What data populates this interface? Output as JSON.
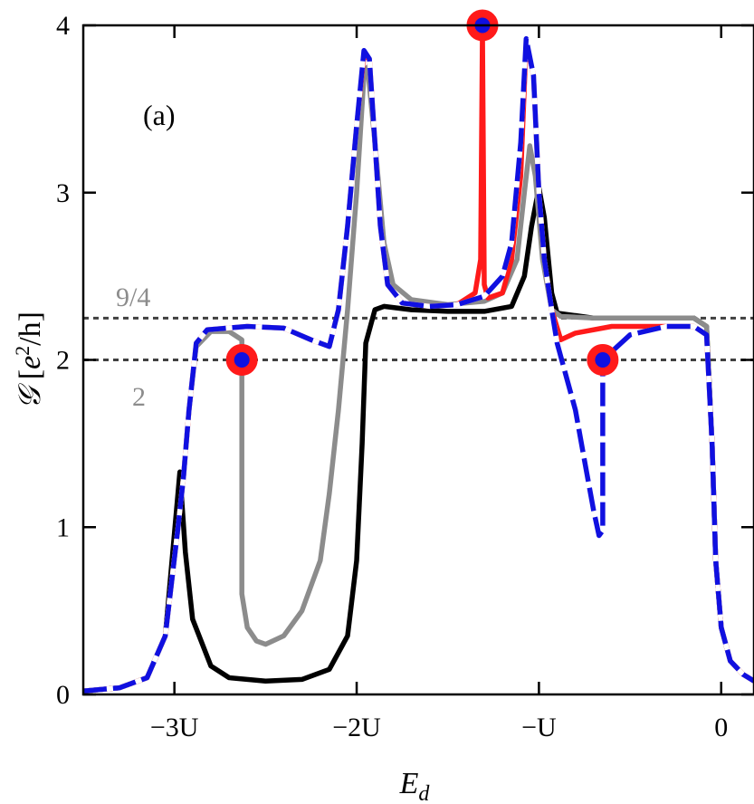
{
  "chart_data": {
    "type": "line",
    "panel_label": "(a)",
    "xlabel_main": "E",
    "xlabel_sub": "d",
    "ylabel_symbol": "𝒢",
    "ylabel_open": " [",
    "ylabel_e": "e",
    "ylabel_pow": "2",
    "ylabel_rest": "/h]",
    "xlim": [
      -3.5,
      0.18
    ],
    "ylim": [
      0,
      4
    ],
    "x_ticks": [
      {
        "value": -3,
        "label": "−3U"
      },
      {
        "value": -2,
        "label": "−2U"
      },
      {
        "value": -1,
        "label": "−U"
      },
      {
        "value": 0,
        "label": "0"
      }
    ],
    "y_ticks": [
      {
        "value": 0,
        "label": "0"
      },
      {
        "value": 1,
        "label": "1"
      },
      {
        "value": 2,
        "label": "2"
      },
      {
        "value": 3,
        "label": "3"
      },
      {
        "value": 4,
        "label": "4"
      }
    ],
    "reference_lines": [
      {
        "y": 2.25,
        "label": "9/4",
        "color": "#404040"
      },
      {
        "y": 2.0,
        "label": "2",
        "color": "#404040"
      }
    ],
    "series": [
      {
        "name": "black",
        "color": "#000000",
        "dash": "solid",
        "points": [
          [
            -3.5,
            0.02
          ],
          [
            -3.3,
            0.04
          ],
          [
            -3.15,
            0.1
          ],
          [
            -3.05,
            0.35
          ],
          [
            -2.97,
            1.33
          ],
          [
            -2.94,
            0.85
          ],
          [
            -2.9,
            0.45
          ],
          [
            -2.8,
            0.17
          ],
          [
            -2.7,
            0.1
          ],
          [
            -2.5,
            0.08
          ],
          [
            -2.3,
            0.09
          ],
          [
            -2.15,
            0.15
          ],
          [
            -2.05,
            0.35
          ],
          [
            -2.0,
            0.8
          ],
          [
            -1.97,
            1.5
          ],
          [
            -1.95,
            2.1
          ],
          [
            -1.9,
            2.3
          ],
          [
            -1.85,
            2.32
          ],
          [
            -1.7,
            2.3
          ],
          [
            -1.5,
            2.29
          ],
          [
            -1.3,
            2.29
          ],
          [
            -1.15,
            2.32
          ],
          [
            -1.08,
            2.5
          ],
          [
            -1.04,
            2.8
          ],
          [
            -1.0,
            3.03
          ],
          [
            -0.97,
            2.85
          ],
          [
            -0.93,
            2.4
          ],
          [
            -0.9,
            2.28
          ],
          [
            -0.7,
            2.25
          ],
          [
            -0.4,
            2.25
          ],
          [
            -0.15,
            2.25
          ],
          [
            -0.08,
            2.2
          ],
          [
            -0.05,
            1.5
          ],
          [
            -0.03,
            0.8
          ],
          [
            0.0,
            0.4
          ],
          [
            0.05,
            0.2
          ],
          [
            0.12,
            0.12
          ],
          [
            0.18,
            0.08
          ]
        ]
      },
      {
        "name": "gray",
        "color": "#8c8c8c",
        "dash": "solid",
        "points": [
          [
            -3.5,
            0.02
          ],
          [
            -3.3,
            0.04
          ],
          [
            -3.15,
            0.1
          ],
          [
            -3.05,
            0.35
          ],
          [
            -2.98,
            1.0
          ],
          [
            -2.95,
            1.3
          ],
          [
            -2.92,
            1.7
          ],
          [
            -2.88,
            2.08
          ],
          [
            -2.8,
            2.17
          ],
          [
            -2.7,
            2.17
          ],
          [
            -2.63,
            2.12
          ],
          [
            -2.63,
            0.6
          ],
          [
            -2.6,
            0.4
          ],
          [
            -2.55,
            0.32
          ],
          [
            -2.5,
            0.3
          ],
          [
            -2.4,
            0.35
          ],
          [
            -2.3,
            0.5
          ],
          [
            -2.2,
            0.8
          ],
          [
            -2.15,
            1.2
          ],
          [
            -2.1,
            1.7
          ],
          [
            -2.05,
            2.3
          ],
          [
            -2.0,
            3.0
          ],
          [
            -1.96,
            3.7
          ],
          [
            -1.94,
            3.75
          ],
          [
            -1.9,
            3.3
          ],
          [
            -1.85,
            2.7
          ],
          [
            -1.8,
            2.45
          ],
          [
            -1.7,
            2.36
          ],
          [
            -1.5,
            2.33
          ],
          [
            -1.3,
            2.35
          ],
          [
            -1.2,
            2.4
          ],
          [
            -1.12,
            2.6
          ],
          [
            -1.08,
            3.0
          ],
          [
            -1.05,
            3.28
          ],
          [
            -1.02,
            3.1
          ],
          [
            -0.98,
            2.6
          ],
          [
            -0.93,
            2.3
          ],
          [
            -0.88,
            2.26
          ],
          [
            -0.7,
            2.25
          ],
          [
            -0.4,
            2.25
          ],
          [
            -0.15,
            2.25
          ],
          [
            -0.08,
            2.2
          ],
          [
            -0.05,
            1.5
          ],
          [
            -0.03,
            0.8
          ],
          [
            0.0,
            0.4
          ],
          [
            0.05,
            0.2
          ],
          [
            0.12,
            0.12
          ],
          [
            0.18,
            0.08
          ]
        ]
      },
      {
        "name": "red",
        "color": "#ff1a1a",
        "dash": "solid",
        "points": [
          [
            -3.5,
            0.02
          ],
          [
            -3.3,
            0.04
          ],
          [
            -3.15,
            0.1
          ],
          [
            -3.05,
            0.35
          ],
          [
            -2.98,
            1.0
          ],
          [
            -2.95,
            1.3
          ],
          [
            -2.92,
            1.7
          ],
          [
            -2.88,
            2.1
          ],
          [
            -2.82,
            2.18
          ],
          [
            -2.6,
            2.2
          ],
          [
            -2.4,
            2.19
          ],
          [
            -2.25,
            2.12
          ],
          [
            -2.15,
            2.08
          ],
          [
            -2.1,
            2.3
          ],
          [
            -2.05,
            2.8
          ],
          [
            -2.0,
            3.4
          ],
          [
            -1.96,
            3.82
          ],
          [
            -1.93,
            3.8
          ],
          [
            -1.9,
            3.3
          ],
          [
            -1.87,
            2.8
          ],
          [
            -1.83,
            2.45
          ],
          [
            -1.75,
            2.34
          ],
          [
            -1.6,
            2.32
          ],
          [
            -1.45,
            2.33
          ],
          [
            -1.35,
            2.4
          ],
          [
            -1.32,
            2.6
          ],
          [
            -1.31,
            3.99
          ],
          [
            -1.3,
            2.45
          ],
          [
            -1.28,
            2.37
          ],
          [
            -1.2,
            2.4
          ],
          [
            -1.15,
            2.6
          ],
          [
            -1.1,
            3.1
          ],
          [
            -1.07,
            3.9
          ],
          [
            -1.03,
            3.7
          ],
          [
            -1.0,
            3.0
          ],
          [
            -0.97,
            2.6
          ],
          [
            -0.93,
            2.3
          ],
          [
            -0.88,
            2.12
          ],
          [
            -0.8,
            2.16
          ],
          [
            -0.6,
            2.2
          ],
          [
            -0.3,
            2.2
          ],
          [
            -0.15,
            2.2
          ],
          [
            -0.08,
            2.15
          ],
          [
            -0.05,
            1.5
          ],
          [
            -0.03,
            0.8
          ],
          [
            0.0,
            0.4
          ],
          [
            0.05,
            0.2
          ],
          [
            0.12,
            0.12
          ],
          [
            0.18,
            0.08
          ]
        ]
      },
      {
        "name": "blue",
        "color": "#1010e0",
        "dash": "dashed",
        "points": [
          [
            -3.5,
            0.02
          ],
          [
            -3.3,
            0.04
          ],
          [
            -3.15,
            0.1
          ],
          [
            -3.05,
            0.35
          ],
          [
            -2.98,
            1.0
          ],
          [
            -2.95,
            1.3
          ],
          [
            -2.92,
            1.7
          ],
          [
            -2.88,
            2.1
          ],
          [
            -2.82,
            2.18
          ],
          [
            -2.6,
            2.2
          ],
          [
            -2.4,
            2.19
          ],
          [
            -2.25,
            2.12
          ],
          [
            -2.15,
            2.08
          ],
          [
            -2.1,
            2.3
          ],
          [
            -2.05,
            2.8
          ],
          [
            -2.0,
            3.4
          ],
          [
            -1.96,
            3.85
          ],
          [
            -1.93,
            3.8
          ],
          [
            -1.9,
            3.3
          ],
          [
            -1.87,
            2.8
          ],
          [
            -1.83,
            2.45
          ],
          [
            -1.75,
            2.34
          ],
          [
            -1.6,
            2.32
          ],
          [
            -1.45,
            2.33
          ],
          [
            -1.3,
            2.38
          ],
          [
            -1.2,
            2.5
          ],
          [
            -1.15,
            2.7
          ],
          [
            -1.1,
            3.3
          ],
          [
            -1.07,
            3.92
          ],
          [
            -1.03,
            3.7
          ],
          [
            -1.0,
            3.0
          ],
          [
            -0.97,
            2.6
          ],
          [
            -0.93,
            2.3
          ],
          [
            -0.9,
            2.1
          ],
          [
            -0.85,
            1.9
          ],
          [
            -0.8,
            1.7
          ],
          [
            -0.75,
            1.4
          ],
          [
            -0.7,
            1.1
          ],
          [
            -0.67,
            0.95
          ],
          [
            -0.65,
            0.98
          ],
          [
            -0.65,
            1.95
          ],
          [
            -0.6,
            2.05
          ],
          [
            -0.5,
            2.15
          ],
          [
            -0.3,
            2.2
          ],
          [
            -0.15,
            2.2
          ],
          [
            -0.08,
            2.15
          ],
          [
            -0.05,
            1.5
          ],
          [
            -0.03,
            0.8
          ],
          [
            0.0,
            0.4
          ],
          [
            0.05,
            0.2
          ],
          [
            0.12,
            0.12
          ],
          [
            0.18,
            0.08
          ]
        ]
      }
    ],
    "markers": [
      {
        "x": -2.63,
        "y": 2.0,
        "ring": "#ff1a1a",
        "dot": "#1010e0"
      },
      {
        "x": -1.31,
        "y": 4.0,
        "ring": "#ff1a1a",
        "dot": "#1010e0"
      },
      {
        "x": -0.65,
        "y": 2.0,
        "ring": "#ff1a1a",
        "dot": "#1010e0"
      }
    ]
  }
}
